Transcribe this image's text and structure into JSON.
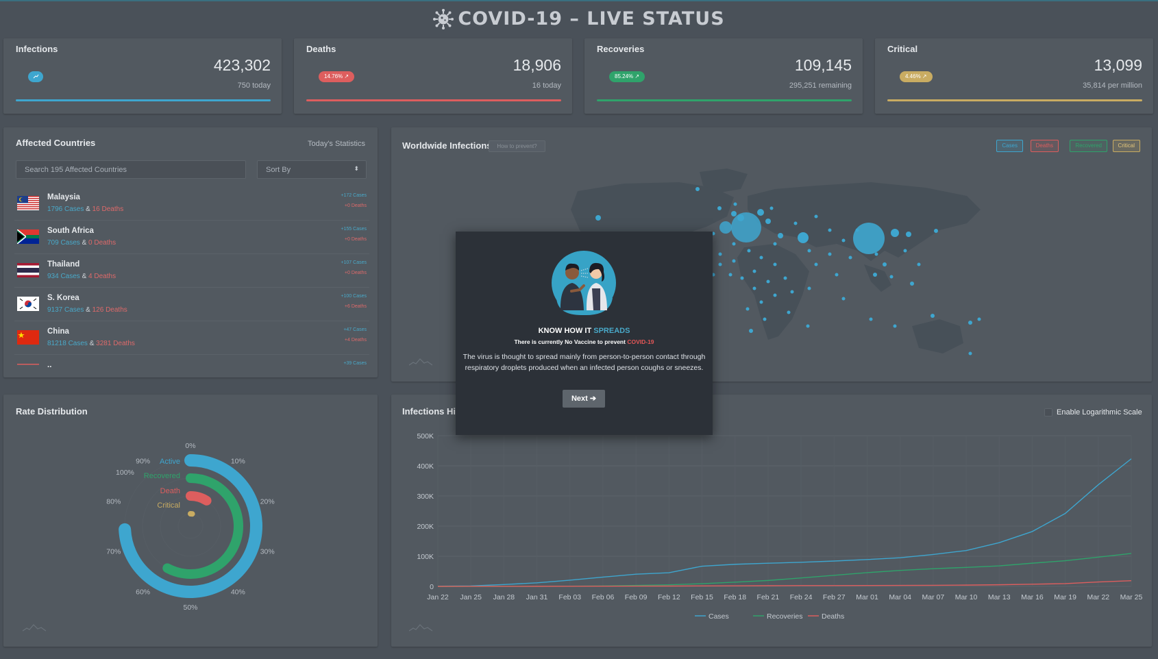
{
  "header": {
    "title": "COVID-19 – LIVE STATUS"
  },
  "stats": [
    {
      "title": "Infections",
      "value": "423,302",
      "sub": "750 today",
      "badge": "",
      "color": "#3ea6cf"
    },
    {
      "title": "Deaths",
      "value": "18,906",
      "sub": "16 today",
      "badge": "14.76%",
      "color": "#dd5e5e"
    },
    {
      "title": "Recoveries",
      "value": "109,145",
      "sub": "295,251 remaining",
      "badge": "85.24%",
      "color": "#2fa36b"
    },
    {
      "title": "Critical",
      "value": "13,099",
      "sub": "35,814 per million",
      "badge": "4.46%",
      "color": "#c9ac62"
    }
  ],
  "affected": {
    "title": "Affected Countries",
    "subtitle": "Today's Statistics",
    "search_placeholder": "Search 195 Affected Countries",
    "sort_label": "Sort By",
    "countries": [
      {
        "name": "Malaysia",
        "cases": "1796 Cases",
        "amp": "&",
        "deaths": "16 Deaths",
        "today_cases": "+172 Cases",
        "today_deaths": "+0 Deaths"
      },
      {
        "name": "South Africa",
        "cases": "709 Cases",
        "amp": "&",
        "deaths": "0 Deaths",
        "today_cases": "+155 Cases",
        "today_deaths": "+0 Deaths"
      },
      {
        "name": "Thailand",
        "cases": "934 Cases",
        "amp": "&",
        "deaths": "4 Deaths",
        "today_cases": "+107 Cases",
        "today_deaths": "+0 Deaths"
      },
      {
        "name": "S. Korea",
        "cases": "9137 Cases",
        "amp": "&",
        "deaths": "126 Deaths",
        "today_cases": "+100 Cases",
        "today_deaths": "+6 Deaths"
      },
      {
        "name": "China",
        "cases": "81218 Cases",
        "amp": "&",
        "deaths": "3281 Deaths",
        "today_cases": "+47 Cases",
        "today_deaths": "+4 Deaths"
      },
      {
        "name": "..",
        "cases": "",
        "amp": "",
        "deaths": "",
        "today_cases": "+39 Cases",
        "today_deaths": ""
      }
    ]
  },
  "map": {
    "title": "Worldwide Infections",
    "help_label": "How to prevent?",
    "legend": [
      {
        "label": "Cases",
        "color": "#3ea6cf"
      },
      {
        "label": "Deaths",
        "color": "#dd5e5e"
      },
      {
        "label": "Recovered",
        "color": "#2fa36b"
      },
      {
        "label": "Critical",
        "color": "#c9ac62"
      }
    ]
  },
  "modal": {
    "title_prefix": "KNOW HOW IT",
    "title_accent": "SPREADS",
    "sub_prefix": "There is currently No Vaccine to prevent",
    "sub_accent": "COVID-19",
    "body": "The virus is thought to spread mainly from person-to-person contact through respiratory droplets produced when an infected person coughs or sneezes.",
    "button": "Next"
  },
  "rate": {
    "title": "Rate Distribution",
    "legend": [
      {
        "label": "Active",
        "color": "#3ea6cf"
      },
      {
        "label": "Recovered",
        "color": "#2fa36b"
      },
      {
        "label": "Death",
        "color": "#dd5e5e"
      },
      {
        "label": "Critical",
        "color": "#c9ac62"
      }
    ]
  },
  "history": {
    "title": "Infections History",
    "log_label": "Enable Logarithmic Scale"
  },
  "chart_data": [
    {
      "type": "radial-bar",
      "categories": [
        "Active",
        "Recovered",
        "Death",
        "Critical"
      ],
      "values": [
        74.2,
        58.0,
        9.0,
        2.3
      ],
      "ticks": [
        "0%",
        "10%",
        "20%",
        "30%",
        "40%",
        "50%",
        "60%",
        "70%",
        "80%",
        "90%",
        "100%"
      ],
      "colors": [
        "#3ea6cf",
        "#2fa36b",
        "#dd5e5e",
        "#c9ac62"
      ]
    },
    {
      "type": "line",
      "title": "Infections History",
      "x": [
        "Jan 22",
        "Jan 25",
        "Jan 28",
        "Jan 31",
        "Feb 03",
        "Feb 06",
        "Feb 09",
        "Feb 12",
        "Feb 15",
        "Feb 18",
        "Feb 21",
        "Feb 24",
        "Feb 27",
        "Mar 01",
        "Mar 04",
        "Mar 07",
        "Mar 10",
        "Mar 13",
        "Mar 16",
        "Mar 19",
        "Mar 22",
        "Mar 25"
      ],
      "ylim": [
        0,
        500000
      ],
      "yticks": [
        "0",
        "100K",
        "200K",
        "300K",
        "400K",
        "500K"
      ],
      "series": [
        {
          "name": "Cases",
          "color": "#3ea6cf",
          "values": [
            555,
            1400,
            6000,
            11900,
            20600,
            30800,
            40500,
            45200,
            67000,
            73300,
            76800,
            80000,
            84100,
            89000,
            95000,
            105800,
            119000,
            145000,
            182000,
            242000,
            337000,
            423302
          ]
        },
        {
          "name": "Recoveries",
          "color": "#2fa36b",
          "values": [
            28,
            39,
            110,
            250,
            620,
            1400,
            3200,
            5200,
            9000,
            14000,
            19600,
            27900,
            36700,
            45600,
            53000,
            58700,
            63000,
            68000,
            77000,
            85000,
            97000,
            109145
          ]
        },
        {
          "name": "Deaths",
          "color": "#dd5e5e",
          "values": [
            17,
            42,
            131,
            259,
            427,
            638,
            909,
            1118,
            1666,
            1873,
            2251,
            2708,
            2811,
            2996,
            3250,
            3558,
            4262,
            5400,
            7140,
            9300,
            14700,
            18906
          ]
        }
      ]
    }
  ]
}
